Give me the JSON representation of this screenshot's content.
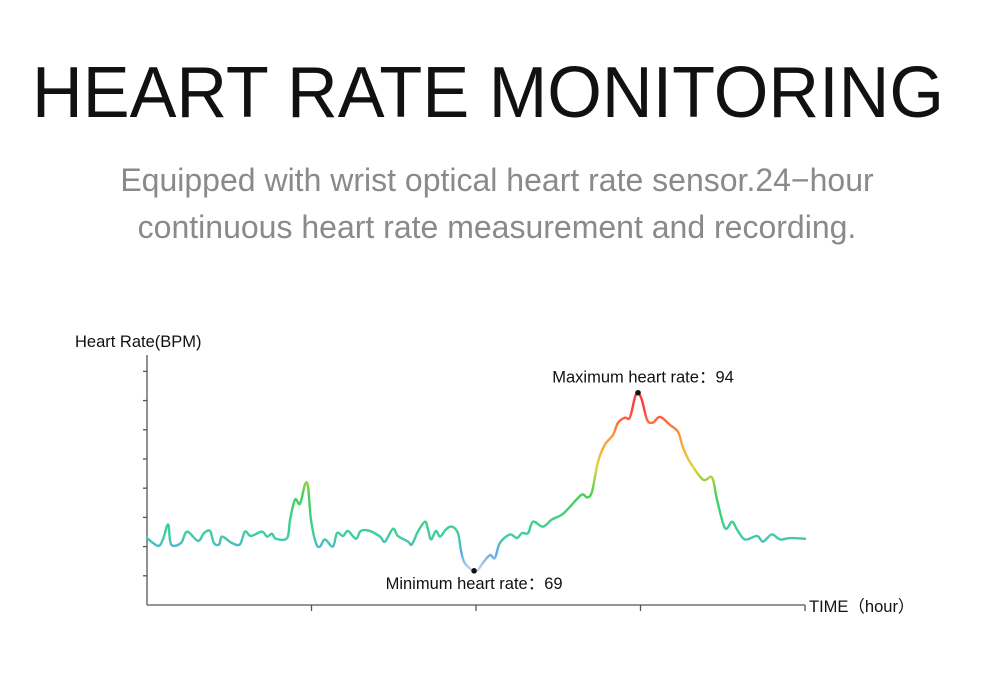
{
  "header": {
    "title": "HEART RATE MONITORING",
    "subtitle_line1": "Equipped with wrist optical heart rate sensor.24−hour",
    "subtitle_line2": "continuous heart rate measurement and recording."
  },
  "chart_data": {
    "type": "line",
    "title": "",
    "xlabel": "TIME（hour）",
    "ylabel": "Heart Rate(BPM)",
    "xlim": [
      0,
      24
    ],
    "ylim": [
      64.2,
      99.3
    ],
    "x_ticks": [
      6,
      12,
      18,
      24
    ],
    "y_ticks": [
      68.3,
      72.4,
      76.5,
      80.6,
      84.7,
      88.8,
      92.9,
      97.0
    ],
    "tick_labels_shown": false,
    "grid": false,
    "color_scale": [
      "#c9d6ea",
      "#5aaae6",
      "#3ecfa0",
      "#44d05a",
      "#e3d23a",
      "#ff9a3a",
      "#ff3b3b"
    ],
    "annotations": {
      "max": {
        "label": "Maximum heart rate：94",
        "x": 17.91,
        "y": 94
      },
      "min": {
        "label": "Minimum heart rate：69",
        "x": 11.93,
        "y": 69
      }
    },
    "series": [
      {
        "x": [
          0,
          0.4,
          0.58,
          0.77,
          0.88,
          1.24,
          1.46,
          1.86,
          2.08,
          2.3,
          2.44,
          2.63,
          2.74,
          3.1,
          3.39,
          3.57,
          3.79,
          4.19,
          4.38,
          4.56,
          4.7,
          5.11,
          5.22,
          5.4,
          5.58,
          5.76,
          5.87,
          5.98,
          6.16,
          6.31,
          6.49,
          6.78,
          6.93,
          7.15,
          7.33,
          7.62,
          7.8,
          8.13,
          8.5,
          8.68,
          8.97,
          9.15,
          9.52,
          9.66,
          9.88,
          10.14,
          10.25,
          10.36,
          10.54,
          10.69,
          10.9,
          11.12,
          11.34,
          11.45,
          11.56,
          11.78,
          11.93,
          12.07,
          12.25,
          12.51,
          12.69,
          12.87,
          13.24,
          13.49,
          13.68,
          13.9,
          14.08,
          14.44,
          14.77,
          15.14,
          15.43,
          15.86,
          16.05,
          16.23,
          16.45,
          16.7,
          17.0,
          17.18,
          17.43,
          17.61,
          17.8,
          17.91,
          18.05,
          18.24,
          18.45,
          18.71,
          19.07,
          19.37,
          19.55,
          19.8,
          20.28,
          20.61,
          20.79,
          21.08,
          21.34,
          21.52,
          21.81,
          22.25,
          22.47,
          22.79,
          23.09,
          23.45,
          24.0
        ],
        "y": [
          73.6,
          72.5,
          73.4,
          75.5,
          72.7,
          72.9,
          74.5,
          73.2,
          74.3,
          74.6,
          72.9,
          72.7,
          73.8,
          72.9,
          72.7,
          74.5,
          73.9,
          74.5,
          73.8,
          74.2,
          73.5,
          73.6,
          76.2,
          79.0,
          78.4,
          81.1,
          80.9,
          76.2,
          72.9,
          72.4,
          73.4,
          72.4,
          74.3,
          73.9,
          74.6,
          73.5,
          74.6,
          74.6,
          73.8,
          73.1,
          74.9,
          73.9,
          73.1,
          72.7,
          74.5,
          75.9,
          74.8,
          73.4,
          74.6,
          73.8,
          74.8,
          75.2,
          74.3,
          71.9,
          70.3,
          69.3,
          69.0,
          69.1,
          70.1,
          71.2,
          70.8,
          72.9,
          74.1,
          73.6,
          74.3,
          74.3,
          75.9,
          75.2,
          76.2,
          76.9,
          78.0,
          79.7,
          79.3,
          80.1,
          84.3,
          86.7,
          88.1,
          89.8,
          90.5,
          90.5,
          93.4,
          94.0,
          93.0,
          90.2,
          89.8,
          90.6,
          89.5,
          88.5,
          86.3,
          84.3,
          81.8,
          82.1,
          79.0,
          75.0,
          75.9,
          74.8,
          73.4,
          73.9,
          73.1,
          74.1,
          73.4,
          73.6,
          73.5
        ]
      }
    ]
  }
}
